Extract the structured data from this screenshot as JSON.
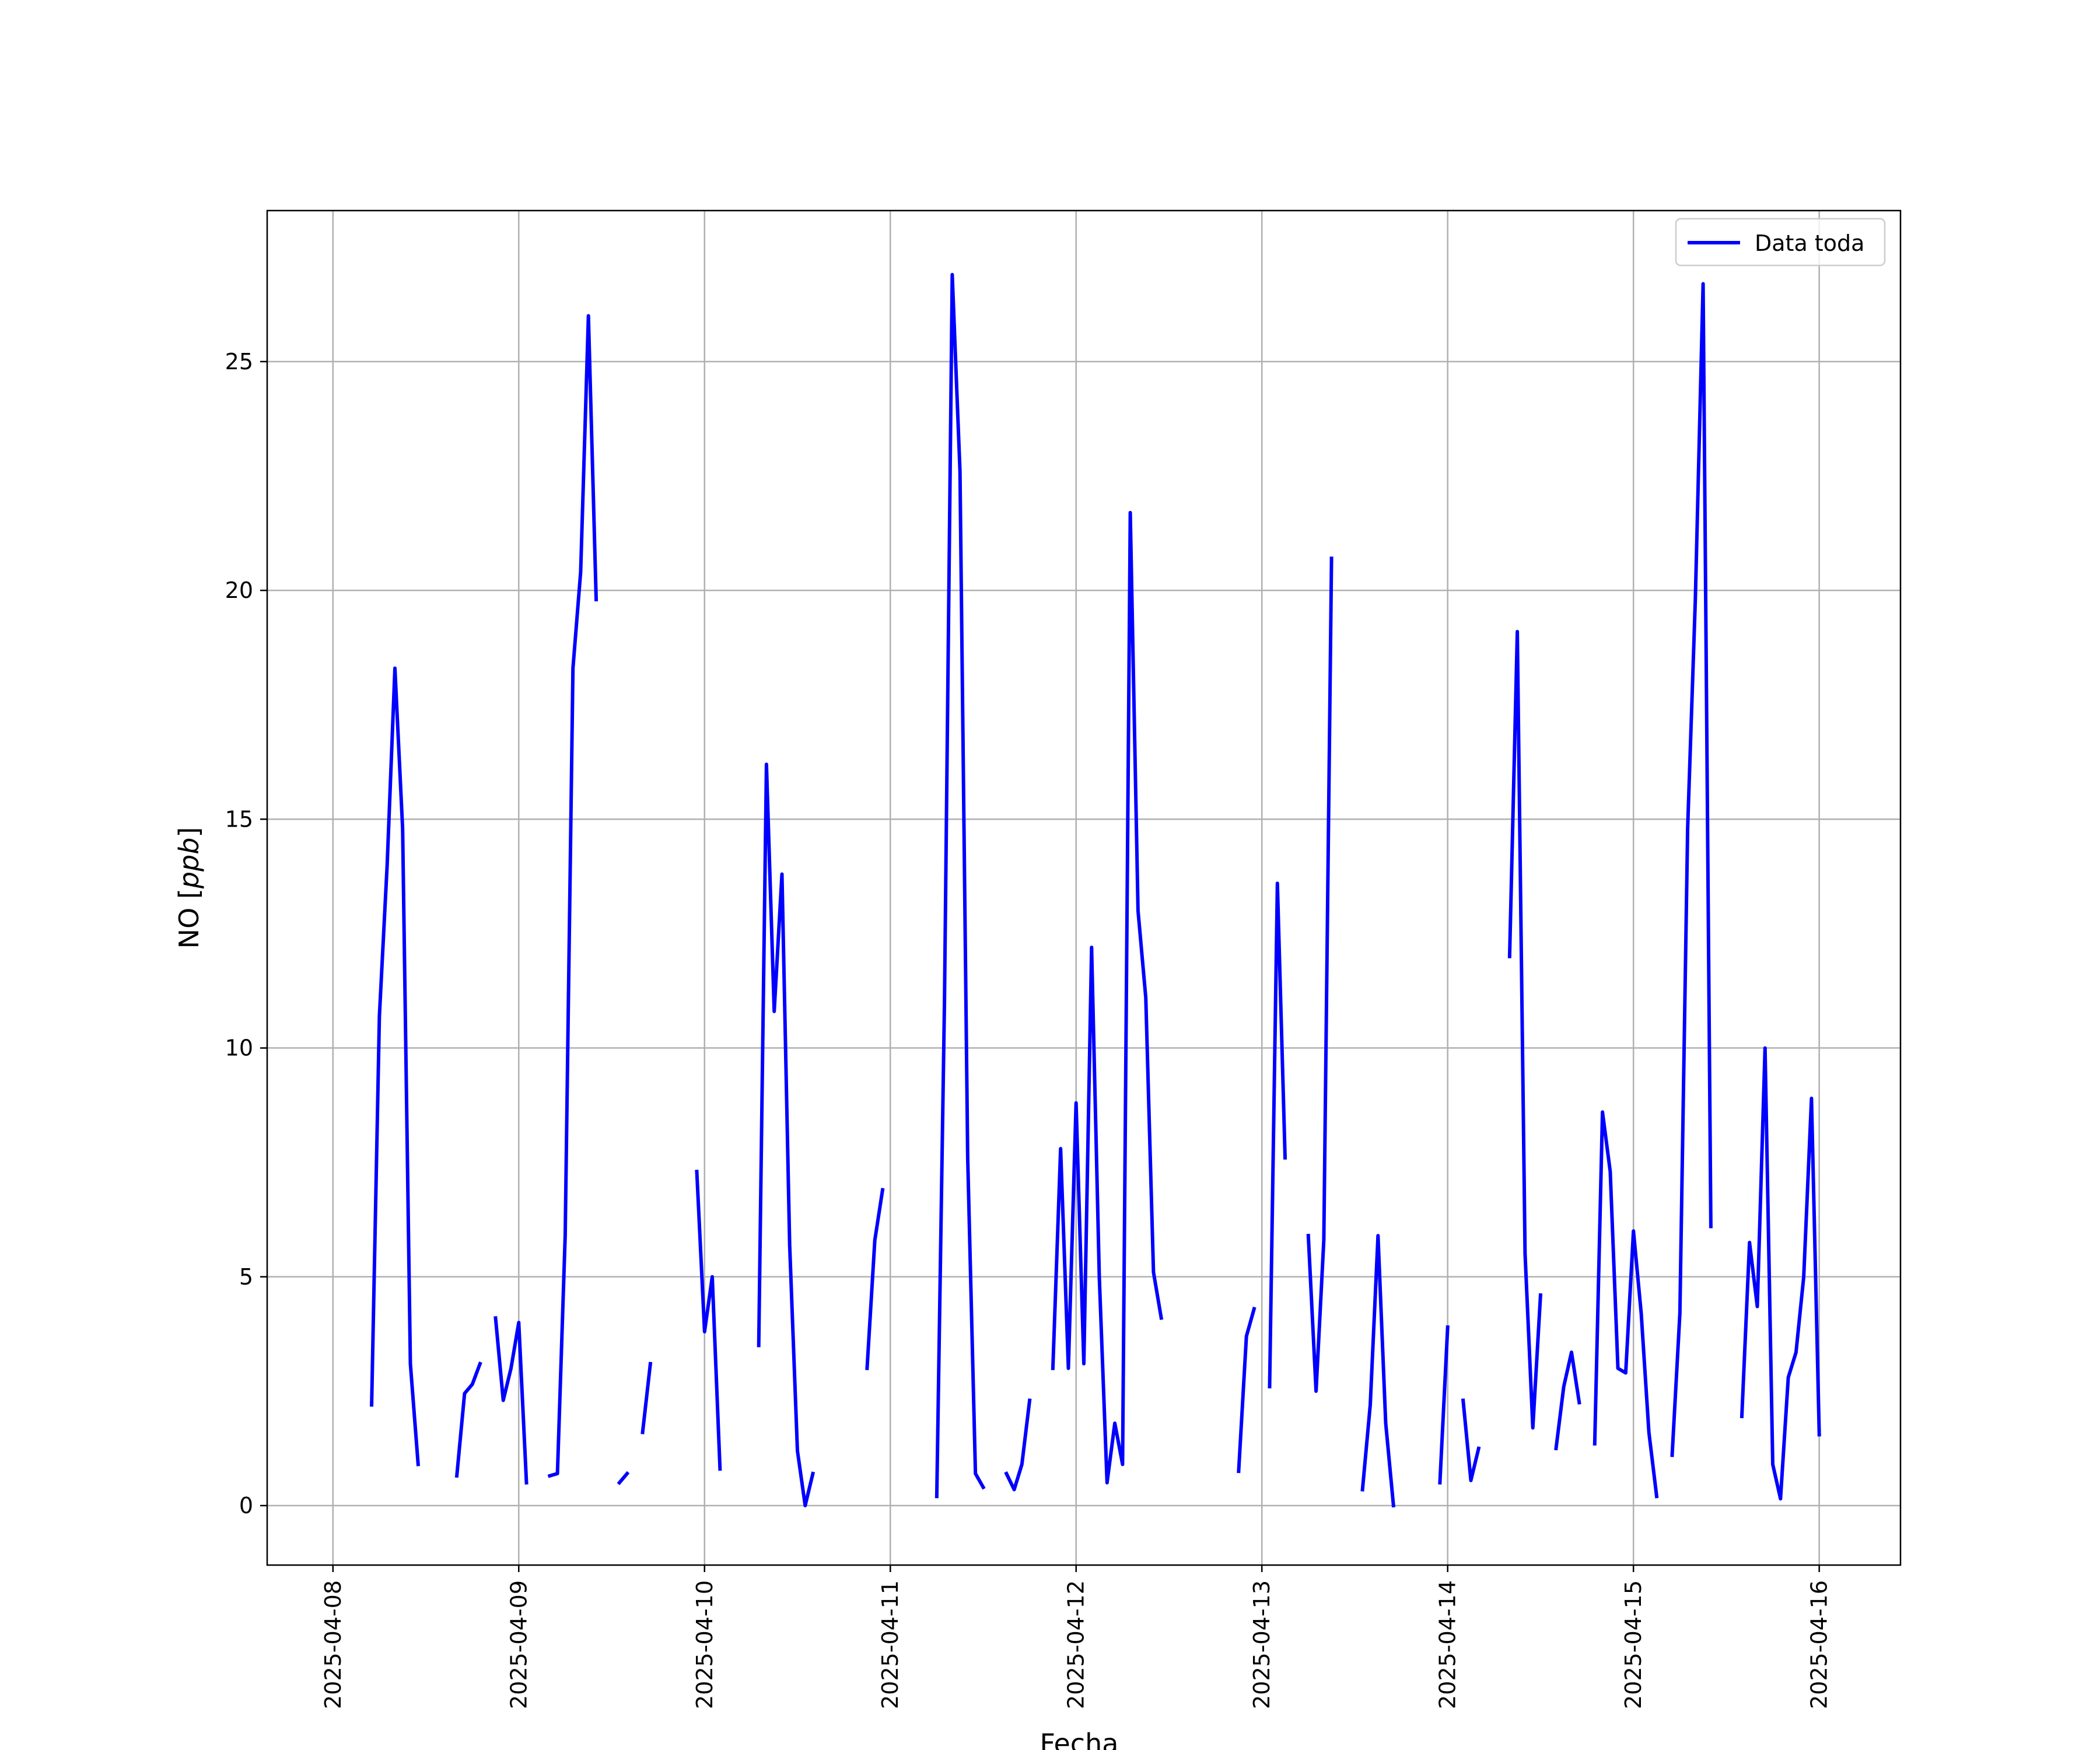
{
  "chart_data": {
    "type": "line",
    "xlabel": "Fecha",
    "ylabel_text": "NO [",
    "ylabel_italic": "ppb",
    "ylabel_close": "]",
    "x_tick_labels": [
      "2025-04-08",
      "2025-04-09",
      "2025-04-10",
      "2025-04-11",
      "2025-04-12",
      "2025-04-13",
      "2025-04-14",
      "2025-04-15",
      "2025-04-16"
    ],
    "y_ticks": [
      0,
      5,
      10,
      15,
      20,
      25
    ],
    "y_tick_labels": [
      "0",
      "5",
      "10",
      "15",
      "20",
      "25"
    ],
    "xlim": [
      "2025-04-07 15:30",
      "2025-04-16 10:30"
    ],
    "ylim": [
      -1.3,
      28.3
    ],
    "grid": true,
    "legend_position": "top-right",
    "series": [
      {
        "name": "Data toda",
        "color": "#0000ff",
        "segments": [
          [
            [
              "2025-04-08 05:00",
              2.2
            ],
            [
              "2025-04-08 06:00",
              10.7
            ],
            [
              "2025-04-08 07:00",
              14.0
            ],
            [
              "2025-04-08 08:00",
              18.3
            ],
            [
              "2025-04-08 09:00",
              14.8
            ],
            [
              "2025-04-08 10:00",
              3.1
            ],
            [
              "2025-04-08 11:00",
              0.9
            ]
          ],
          [
            [
              "2025-04-08 16:00",
              0.65
            ],
            [
              "2025-04-08 17:00",
              2.45
            ],
            [
              "2025-04-08 18:00",
              2.65
            ],
            [
              "2025-04-08 19:00",
              3.1
            ]
          ],
          [
            [
              "2025-04-08 21:00",
              4.1
            ],
            [
              "2025-04-08 22:00",
              2.3
            ],
            [
              "2025-04-08 23:00",
              3.0
            ],
            [
              "2025-04-09 00:00",
              4.0
            ],
            [
              "2025-04-09 01:00",
              0.5
            ]
          ],
          [
            [
              "2025-04-09 04:00",
              0.65
            ],
            [
              "2025-04-09 05:00",
              0.7
            ],
            [
              "2025-04-09 06:00",
              5.9
            ],
            [
              "2025-04-09 07:00",
              18.3
            ],
            [
              "2025-04-09 08:00",
              20.4
            ],
            [
              "2025-04-09 09:00",
              26.0
            ],
            [
              "2025-04-09 10:00",
              19.8
            ]
          ],
          [
            [
              "2025-04-09 13:00",
              0.5
            ],
            [
              "2025-04-09 14:00",
              0.7
            ]
          ],
          [
            [
              "2025-04-09 16:00",
              1.6
            ],
            [
              "2025-04-09 17:00",
              3.1
            ]
          ],
          [
            [
              "2025-04-09 23:00",
              7.3
            ],
            [
              "2025-04-10 00:00",
              3.8
            ],
            [
              "2025-04-10 01:00",
              5.0
            ],
            [
              "2025-04-10 02:00",
              0.8
            ]
          ],
          [
            [
              "2025-04-10 07:00",
              3.5
            ],
            [
              "2025-04-10 08:00",
              16.2
            ],
            [
              "2025-04-10 09:00",
              10.8
            ],
            [
              "2025-04-10 10:00",
              13.8
            ],
            [
              "2025-04-10 11:00",
              5.7
            ],
            [
              "2025-04-10 12:00",
              1.2
            ],
            [
              "2025-04-10 13:00",
              0.0
            ],
            [
              "2025-04-10 14:00",
              0.7
            ]
          ],
          [
            [
              "2025-04-10 21:00",
              3.0
            ],
            [
              "2025-04-10 22:00",
              5.8
            ],
            [
              "2025-04-10 23:00",
              6.9
            ]
          ],
          [
            [
              "2025-04-11 06:00",
              0.2
            ],
            [
              "2025-04-11 07:00",
              11.0
            ],
            [
              "2025-04-11 08:00",
              26.9
            ],
            [
              "2025-04-11 09:00",
              22.6
            ],
            [
              "2025-04-11 10:00",
              7.6
            ],
            [
              "2025-04-11 11:00",
              0.7
            ],
            [
              "2025-04-11 12:00",
              0.4
            ]
          ],
          [
            [
              "2025-04-11 15:00",
              0.7
            ],
            [
              "2025-04-11 16:00",
              0.35
            ],
            [
              "2025-04-11 17:00",
              0.9
            ],
            [
              "2025-04-11 18:00",
              2.3
            ]
          ],
          [
            [
              "2025-04-11 21:00",
              3.0
            ],
            [
              "2025-04-11 22:00",
              7.8
            ],
            [
              "2025-04-11 23:00",
              3.0
            ],
            [
              "2025-04-12 00:00",
              8.8
            ],
            [
              "2025-04-12 01:00",
              3.1
            ],
            [
              "2025-04-12 02:00",
              12.2
            ],
            [
              "2025-04-12 03:00",
              5.0
            ],
            [
              "2025-04-12 04:00",
              0.5
            ],
            [
              "2025-04-12 05:00",
              1.8
            ],
            [
              "2025-04-12 06:00",
              0.9
            ],
            [
              "2025-04-12 07:00",
              21.7
            ],
            [
              "2025-04-12 08:00",
              13.0
            ],
            [
              "2025-04-12 09:00",
              11.1
            ],
            [
              "2025-04-12 10:00",
              5.1
            ],
            [
              "2025-04-12 11:00",
              4.1
            ]
          ],
          [
            [
              "2025-04-12 21:00",
              0.75
            ],
            [
              "2025-04-12 22:00",
              3.7
            ],
            [
              "2025-04-12 23:00",
              4.3
            ]
          ],
          [
            [
              "2025-04-13 01:00",
              2.6
            ],
            [
              "2025-04-13 02:00",
              13.6
            ],
            [
              "2025-04-13 03:00",
              7.6
            ]
          ],
          [
            [
              "2025-04-13 06:00",
              5.9
            ],
            [
              "2025-04-13 07:00",
              2.5
            ],
            [
              "2025-04-13 08:00",
              5.8
            ],
            [
              "2025-04-13 09:00",
              20.7
            ]
          ],
          [
            [
              "2025-04-13 13:00",
              0.35
            ],
            [
              "2025-04-13 14:00",
              2.2
            ],
            [
              "2025-04-13 15:00",
              5.9
            ],
            [
              "2025-04-13 16:00",
              1.8
            ],
            [
              "2025-04-13 17:00",
              0.0
            ]
          ],
          [
            [
              "2025-04-13 23:00",
              0.5
            ],
            [
              "2025-04-14 00:00",
              3.9
            ]
          ],
          [
            [
              "2025-04-14 02:00",
              2.3
            ],
            [
              "2025-04-14 03:00",
              0.55
            ],
            [
              "2025-04-14 04:00",
              1.25
            ]
          ],
          [
            [
              "2025-04-14 08:00",
              12.0
            ],
            [
              "2025-04-14 09:00",
              19.1
            ],
            [
              "2025-04-14 10:00",
              5.5
            ],
            [
              "2025-04-14 11:00",
              1.7
            ],
            [
              "2025-04-14 12:00",
              4.6
            ]
          ],
          [
            [
              "2025-04-14 14:00",
              1.25
            ],
            [
              "2025-04-14 15:00",
              2.6
            ],
            [
              "2025-04-14 16:00",
              3.35
            ],
            [
              "2025-04-14 17:00",
              2.25
            ]
          ],
          [
            [
              "2025-04-14 19:00",
              1.35
            ],
            [
              "2025-04-14 20:00",
              8.6
            ],
            [
              "2025-04-14 21:00",
              7.3
            ],
            [
              "2025-04-14 22:00",
              3.0
            ],
            [
              "2025-04-14 23:00",
              2.9
            ],
            [
              "2025-04-15 00:00",
              6.0
            ],
            [
              "2025-04-15 01:00",
              4.2
            ],
            [
              "2025-04-15 02:00",
              1.6
            ],
            [
              "2025-04-15 03:00",
              0.2
            ]
          ],
          [
            [
              "2025-04-15 05:00",
              1.1
            ],
            [
              "2025-04-15 06:00",
              4.2
            ],
            [
              "2025-04-15 07:00",
              14.8
            ],
            [
              "2025-04-15 08:00",
              19.8
            ],
            [
              "2025-04-15 09:00",
              26.7
            ],
            [
              "2025-04-15 10:00",
              6.1
            ]
          ],
          [
            [
              "2025-04-15 14:00",
              1.95
            ],
            [
              "2025-04-15 15:00",
              5.75
            ],
            [
              "2025-04-15 16:00",
              4.35
            ],
            [
              "2025-04-15 17:00",
              10.0
            ],
            [
              "2025-04-15 18:00",
              0.9
            ],
            [
              "2025-04-15 19:00",
              0.15
            ],
            [
              "2025-04-15 20:00",
              2.8
            ],
            [
              "2025-04-15 21:00",
              3.35
            ],
            [
              "2025-04-15 22:00",
              5.0
            ],
            [
              "2025-04-15 23:00",
              8.9
            ],
            [
              "2025-04-16 00:00",
              1.55
            ]
          ]
        ]
      }
    ]
  }
}
